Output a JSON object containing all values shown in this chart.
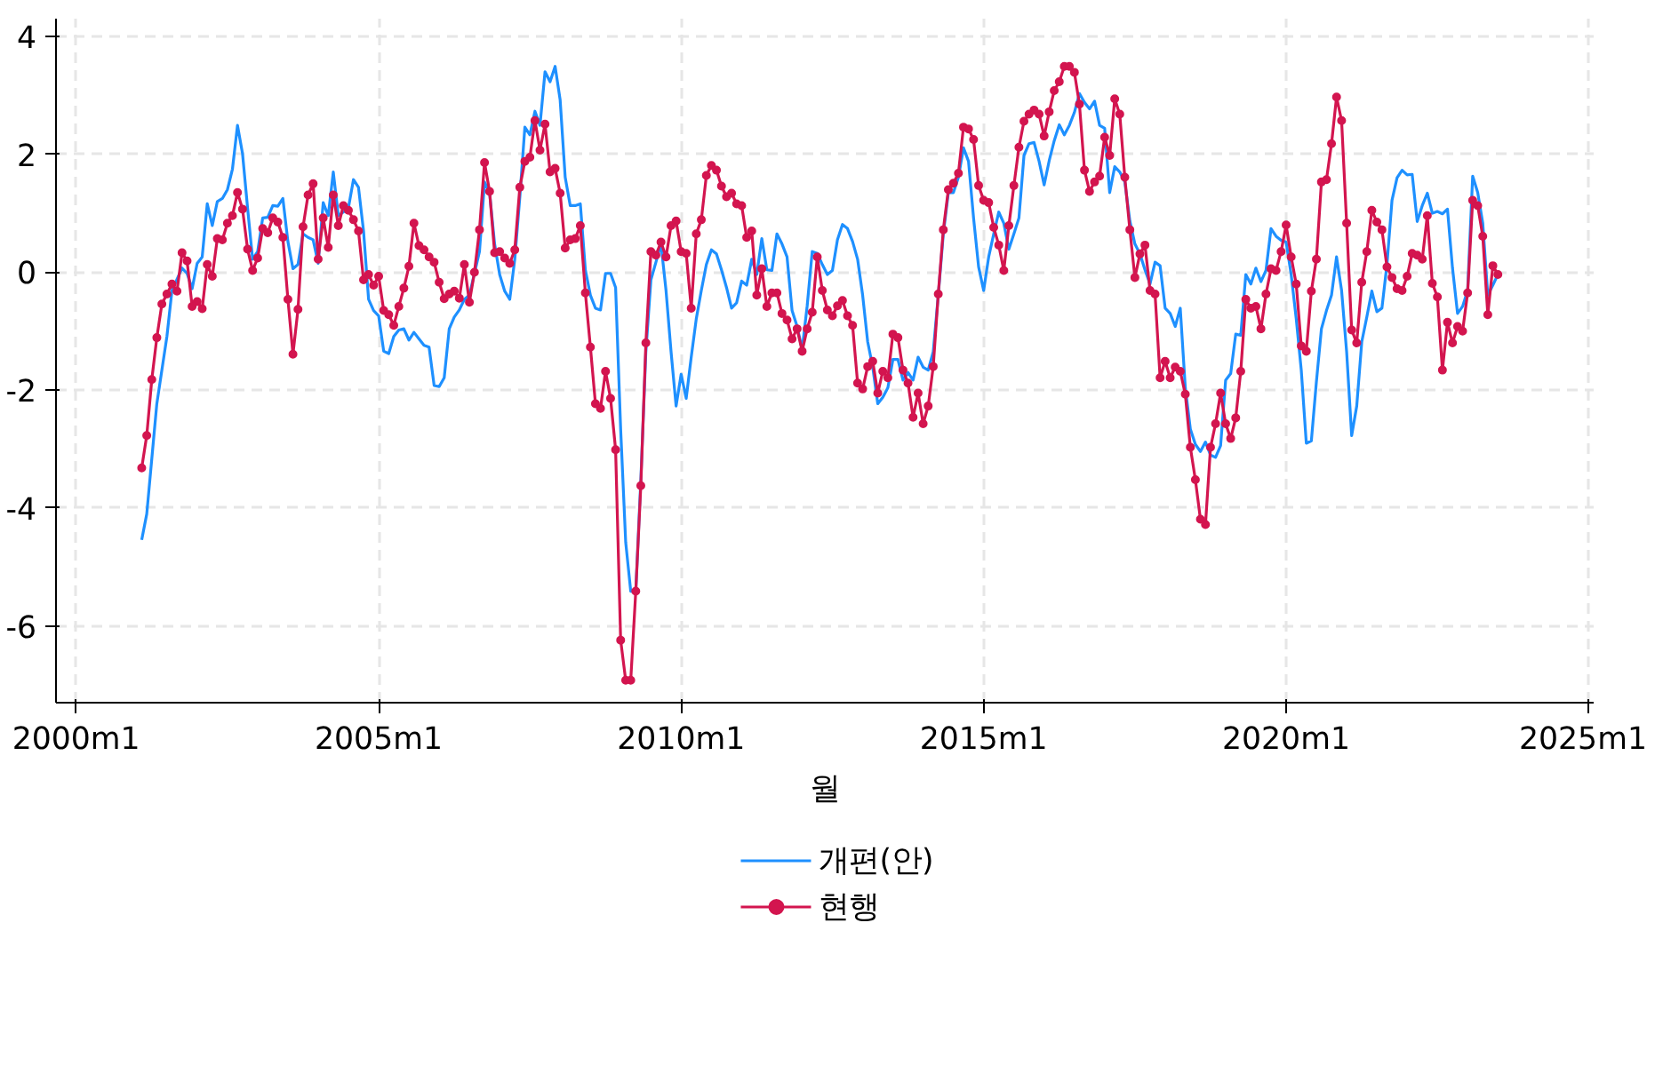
{
  "chart_data": {
    "type": "line",
    "xlabel": "월",
    "xlim": [
      "1999-09",
      "2025-02"
    ],
    "ylim": [
      -7.3,
      4.3
    ],
    "xticks": [
      {
        "value": "2000-01",
        "label": "2000m1"
      },
      {
        "value": "2005-01",
        "label": "2005m1"
      },
      {
        "value": "2010-01",
        "label": "2010m1"
      },
      {
        "value": "2015-01",
        "label": "2015m1"
      },
      {
        "value": "2020-01",
        "label": "2020m1"
      },
      {
        "value": "2025-01",
        "label": "2025m1"
      }
    ],
    "yticks": [
      -6,
      -4,
      -2,
      0,
      2,
      4
    ],
    "grid": true,
    "legend": "bottom",
    "line_style": "solid",
    "series": [
      {
        "name": "개편(안)",
        "color": "#1e90ff",
        "marker": "none",
        "x": [
          "2001-02",
          "2001-03",
          "2001-05",
          "2001-07",
          "2001-08",
          "2001-10",
          "2001-11",
          "2001-12",
          "2002-01",
          "2002-02",
          "2002-03",
          "2002-04",
          "2002-05",
          "2002-06",
          "2002-07",
          "2002-08",
          "2002-09",
          "2002-10",
          "2002-11",
          "2002-12",
          "2003-01",
          "2003-02",
          "2003-03",
          "2003-04",
          "2003-05",
          "2003-06",
          "2003-07",
          "2003-08",
          "2003-09",
          "2003-10",
          "2003-11",
          "2003-12",
          "2004-01",
          "2004-02",
          "2004-03",
          "2004-04",
          "2004-05",
          "2004-06",
          "2004-07",
          "2004-08",
          "2004-09",
          "2004-10",
          "2004-11",
          "2004-12",
          "2005-01",
          "2005-02",
          "2005-03",
          "2005-04",
          "2005-05",
          "2005-06",
          "2005-07",
          "2005-08",
          "2005-09",
          "2005-10",
          "2005-11",
          "2005-12",
          "2006-01",
          "2006-02",
          "2006-03",
          "2006-04",
          "2006-05",
          "2006-06",
          "2006-07",
          "2006-09",
          "2006-10",
          "2006-11",
          "2006-12",
          "2007-01",
          "2007-02",
          "2007-03",
          "2007-04",
          "2007-05",
          "2007-06",
          "2007-07",
          "2007-08",
          "2007-09",
          "2007-10",
          "2007-11",
          "2007-12",
          "2008-01",
          "2008-02",
          "2008-03",
          "2008-04",
          "2008-05",
          "2008-06",
          "2008-07",
          "2008-08",
          "2008-09",
          "2008-10",
          "2008-11",
          "2008-12",
          "2009-01",
          "2009-02",
          "2009-03",
          "2009-04",
          "2009-05",
          "2009-06",
          "2009-07",
          "2009-08",
          "2009-09",
          "2009-10",
          "2009-11",
          "2009-12",
          "2010-01",
          "2010-02",
          "2010-03",
          "2010-04",
          "2010-05",
          "2010-06",
          "2010-07",
          "2010-08",
          "2010-09",
          "2010-10",
          "2010-11",
          "2010-12",
          "2011-01",
          "2011-02",
          "2011-03",
          "2011-04",
          "2011-05",
          "2011-06",
          "2011-07",
          "2011-08",
          "2011-09",
          "2011-10",
          "2011-11",
          "2011-12",
          "2012-01",
          "2012-02",
          "2012-03",
          "2012-04",
          "2012-05",
          "2012-06",
          "2012-07",
          "2012-08",
          "2012-09",
          "2012-10",
          "2012-11",
          "2012-12",
          "2013-01",
          "2013-02",
          "2013-03",
          "2013-04",
          "2013-05",
          "2013-06",
          "2013-07",
          "2013-08",
          "2013-09",
          "2013-10",
          "2013-11",
          "2013-12",
          "2014-01",
          "2014-02",
          "2014-03",
          "2014-04",
          "2014-05",
          "2014-06",
          "2014-07",
          "2014-08",
          "2014-09",
          "2014-10",
          "2014-11",
          "2014-12",
          "2015-01",
          "2015-02",
          "2015-03",
          "2015-04",
          "2015-05",
          "2015-06",
          "2015-07",
          "2015-08",
          "2015-09",
          "2015-10",
          "2015-11",
          "2015-12",
          "2016-01",
          "2016-02",
          "2016-03",
          "2016-04",
          "2016-05",
          "2016-06",
          "2016-07",
          "2016-08",
          "2016-09",
          "2016-10",
          "2016-11",
          "2016-12",
          "2017-01",
          "2017-02",
          "2017-03",
          "2017-04",
          "2017-05",
          "2017-06",
          "2017-07",
          "2017-08",
          "2017-09",
          "2017-10",
          "2017-11",
          "2017-12",
          "2018-01",
          "2018-02",
          "2018-03",
          "2018-04",
          "2018-05",
          "2018-06",
          "2018-07",
          "2018-08",
          "2018-09",
          "2018-10",
          "2018-11",
          "2018-12",
          "2019-01",
          "2019-02",
          "2019-03",
          "2019-04",
          "2019-05",
          "2019-06",
          "2019-07",
          "2019-08",
          "2019-09",
          "2019-10",
          "2019-11",
          "2019-12",
          "2020-01",
          "2020-02",
          "2020-03",
          "2020-04",
          "2020-05",
          "2020-06",
          "2020-07",
          "2020-08",
          "2020-09",
          "2020-10",
          "2020-11",
          "2020-12",
          "2021-01",
          "2021-02",
          "2021-03",
          "2021-04",
          "2021-05",
          "2021-06",
          "2021-07",
          "2021-08",
          "2021-09",
          "2021-10",
          "2021-11",
          "2021-12",
          "2022-01",
          "2022-02",
          "2022-03",
          "2022-04",
          "2022-05",
          "2022-06",
          "2022-07",
          "2022-08",
          "2022-09",
          "2022-10",
          "2022-11",
          "2022-12",
          "2023-01",
          "2023-02",
          "2023-03",
          "2023-04",
          "2023-05",
          "2023-06",
          "2023-07"
        ],
        "values": [
          -4.54,
          -4.1,
          -2.23,
          -1.09,
          -0.31,
          0.07,
          -0.02,
          -0.28,
          0.15,
          0.26,
          1.16,
          0.79,
          1.2,
          1.25,
          1.4,
          1.75,
          2.49,
          2.01,
          1.09,
          0.22,
          0.35,
          0.92,
          0.93,
          1.13,
          1.12,
          1.25,
          0.52,
          0.06,
          0.13,
          0.65,
          0.59,
          0.55,
          0.15,
          1.18,
          0.96,
          1.7,
          0.96,
          1.02,
          1.09,
          1.57,
          1.44,
          0.7,
          -0.46,
          -0.65,
          -0.74,
          -1.34,
          -1.38,
          -1.09,
          -0.98,
          -0.96,
          -1.15,
          -1.02,
          -1.13,
          -1.24,
          -1.27,
          -1.92,
          -1.94,
          -1.79,
          -0.96,
          -0.76,
          -0.64,
          -0.46,
          -0.39,
          0.35,
          1.53,
          1.35,
          0.48,
          -0.04,
          -0.32,
          -0.46,
          0.22,
          1.27,
          2.46,
          2.33,
          2.73,
          2.49,
          3.4,
          3.23,
          3.49,
          2.92,
          1.61,
          1.13,
          1.13,
          1.16,
          0.04,
          -0.39,
          -0.61,
          -0.64,
          -0.02,
          -0.02,
          -0.26,
          -2.66,
          -4.58,
          -5.41,
          -5.41,
          -3.53,
          -1.35,
          -0.13,
          0.17,
          0.48,
          -0.31,
          -1.35,
          -2.27,
          -1.73,
          -2.14,
          -1.44,
          -0.79,
          -0.31,
          0.13,
          0.38,
          0.31,
          0.04,
          -0.26,
          -0.61,
          -0.52,
          -0.15,
          -0.22,
          0.22,
          -0.04,
          0.57,
          0.04,
          0.03,
          0.65,
          0.48,
          0.26,
          -0.65,
          -0.92,
          -1.31,
          -0.57,
          0.35,
          0.32,
          0.13,
          -0.04,
          0.03,
          0.55,
          0.81,
          0.74,
          0.52,
          0.22,
          -0.39,
          -1.18,
          -1.61,
          -2.23,
          -2.12,
          -1.96,
          -1.48,
          -1.48,
          -1.83,
          -1.7,
          -1.83,
          -1.44,
          -1.61,
          -1.66,
          -1.35,
          -0.39,
          0.65,
          1.35,
          1.35,
          1.61,
          2.11,
          1.88,
          0.92,
          0.09,
          -0.31,
          0.26,
          0.65,
          1.02,
          0.83,
          0.39,
          0.65,
          0.92,
          1.98,
          2.18,
          2.2,
          1.88,
          1.48,
          1.89,
          2.23,
          2.5,
          2.33,
          2.49,
          2.71,
          3.03,
          2.88,
          2.77,
          2.9,
          2.49,
          2.44,
          1.35,
          1.79,
          1.7,
          1.53,
          0.87,
          0.48,
          0.31,
          0.04,
          -0.2,
          0.17,
          0.11,
          -0.61,
          -0.7,
          -0.92,
          -0.61,
          -1.96,
          -2.66,
          -2.92,
          -3.04,
          -2.88,
          -3.1,
          -3.14,
          -2.94,
          -1.83,
          -1.72,
          -1.05,
          -1.07,
          -0.04,
          -0.2,
          0.07,
          -0.16,
          0.03,
          0.74,
          0.61,
          0.54,
          0.51,
          -0.04,
          -0.79,
          -1.66,
          -2.9,
          -2.86,
          -1.86,
          -0.96,
          -0.65,
          -0.39,
          0.26,
          -0.31,
          -1.35,
          -2.77,
          -2.27,
          -1.18,
          -0.76,
          -0.32,
          -0.67,
          -0.61,
          0.13,
          1.22,
          1.6,
          1.73,
          1.65,
          1.66,
          0.86,
          1.13,
          1.34,
          1.0,
          1.03,
          0.99,
          1.07,
          0.07,
          -0.7,
          -0.58,
          -0.31,
          1.63,
          1.35,
          0.83,
          -0.39,
          -0.22,
          -0.04
        ]
      },
      {
        "name": "현행",
        "color": "#d3154f",
        "marker": "circle",
        "x": [
          "2001-02",
          "2001-03",
          "2001-04",
          "2001-05",
          "2001-06",
          "2001-07",
          "2001-08",
          "2001-09",
          "2001-10",
          "2001-11",
          "2001-12",
          "2002-01",
          "2002-02",
          "2002-03",
          "2002-04",
          "2002-05",
          "2002-06",
          "2002-07",
          "2002-08",
          "2002-09",
          "2002-10",
          "2002-11",
          "2002-12",
          "2003-01",
          "2003-02",
          "2003-03",
          "2003-04",
          "2003-05",
          "2003-06",
          "2003-07",
          "2003-08",
          "2003-09",
          "2003-10",
          "2003-11",
          "2003-12",
          "2004-01",
          "2004-02",
          "2004-03",
          "2004-04",
          "2004-05",
          "2004-06",
          "2004-07",
          "2004-08",
          "2004-09",
          "2004-10",
          "2004-11",
          "2004-12",
          "2005-01",
          "2005-02",
          "2005-03",
          "2005-04",
          "2005-05",
          "2005-06",
          "2005-07",
          "2005-08",
          "2005-09",
          "2005-10",
          "2005-11",
          "2005-12",
          "2006-01",
          "2006-02",
          "2006-03",
          "2006-04",
          "2006-05",
          "2006-06",
          "2006-07",
          "2006-08",
          "2006-09",
          "2006-10",
          "2006-11",
          "2006-12",
          "2007-01",
          "2007-02",
          "2007-03",
          "2007-04",
          "2007-05",
          "2007-06",
          "2007-07",
          "2007-08",
          "2007-09",
          "2007-10",
          "2007-11",
          "2007-12",
          "2008-01",
          "2008-02",
          "2008-03",
          "2008-04",
          "2008-05",
          "2008-06",
          "2008-07",
          "2008-08",
          "2008-09",
          "2008-10",
          "2008-11",
          "2008-12",
          "2009-01",
          "2009-02",
          "2009-03",
          "2009-04",
          "2009-05",
          "2009-06",
          "2009-07",
          "2009-08",
          "2009-09",
          "2009-10",
          "2009-11",
          "2009-12",
          "2010-01",
          "2010-02",
          "2010-03",
          "2010-04",
          "2010-05",
          "2010-06",
          "2010-07",
          "2010-08",
          "2010-09",
          "2010-10",
          "2010-11",
          "2010-12",
          "2011-01",
          "2011-02",
          "2011-03",
          "2011-04",
          "2011-05",
          "2011-06",
          "2011-07",
          "2011-08",
          "2011-09",
          "2011-10",
          "2011-11",
          "2011-12",
          "2012-01",
          "2012-02",
          "2012-03",
          "2012-04",
          "2012-05",
          "2012-06",
          "2012-07",
          "2012-08",
          "2012-09",
          "2012-10",
          "2012-11",
          "2012-12",
          "2013-01",
          "2013-02",
          "2013-03",
          "2013-04",
          "2013-05",
          "2013-06",
          "2013-07",
          "2013-08",
          "2013-09",
          "2013-10",
          "2013-11",
          "2013-12",
          "2014-01",
          "2014-02",
          "2014-03",
          "2014-04",
          "2014-05",
          "2014-06",
          "2014-07",
          "2014-08",
          "2014-09",
          "2014-10",
          "2014-11",
          "2014-12",
          "2015-01",
          "2015-02",
          "2015-03",
          "2015-04",
          "2015-05",
          "2015-06",
          "2015-07",
          "2015-08",
          "2015-09",
          "2015-10",
          "2015-11",
          "2015-12",
          "2016-01",
          "2016-02",
          "2016-03",
          "2016-04",
          "2016-05",
          "2016-06",
          "2016-07",
          "2016-08",
          "2016-09",
          "2016-10",
          "2016-11",
          "2016-12",
          "2017-01",
          "2017-02",
          "2017-03",
          "2017-04",
          "2017-05",
          "2017-06",
          "2017-07",
          "2017-08",
          "2017-09",
          "2017-10",
          "2017-11",
          "2017-12",
          "2018-01",
          "2018-02",
          "2018-03",
          "2018-04",
          "2018-05",
          "2018-06",
          "2018-07",
          "2018-08",
          "2018-09",
          "2018-10",
          "2018-11",
          "2018-12",
          "2019-01",
          "2019-02",
          "2019-03",
          "2019-04",
          "2019-05",
          "2019-06",
          "2019-07",
          "2019-08",
          "2019-09",
          "2019-10",
          "2019-11",
          "2019-12",
          "2020-01",
          "2020-02",
          "2020-03",
          "2020-04",
          "2020-05",
          "2020-06",
          "2020-07",
          "2020-08",
          "2020-09",
          "2020-10",
          "2020-11",
          "2020-12",
          "2021-01",
          "2021-02",
          "2021-03",
          "2021-04",
          "2021-05",
          "2021-06",
          "2021-07",
          "2021-08",
          "2021-09",
          "2021-10",
          "2021-11",
          "2021-12",
          "2022-01",
          "2022-02",
          "2022-03",
          "2022-04",
          "2022-05",
          "2022-06",
          "2022-07",
          "2022-08",
          "2022-09",
          "2022-10",
          "2022-11",
          "2022-12",
          "2023-01",
          "2023-02",
          "2023-03",
          "2023-04",
          "2023-05",
          "2023-06",
          "2023-07"
        ],
        "values": [
          -3.32,
          -2.77,
          -1.82,
          -1.11,
          -0.54,
          -0.37,
          -0.2,
          -0.32,
          0.33,
          0.19,
          -0.58,
          -0.5,
          -0.62,
          0.13,
          -0.07,
          0.57,
          0.55,
          0.83,
          0.96,
          1.35,
          1.07,
          0.39,
          0.03,
          0.24,
          0.74,
          0.67,
          0.92,
          0.85,
          0.59,
          -0.46,
          -1.39,
          -0.63,
          0.77,
          1.31,
          1.5,
          0.22,
          0.92,
          0.42,
          1.31,
          0.79,
          1.13,
          1.05,
          0.89,
          0.7,
          -0.13,
          -0.04,
          -0.22,
          -0.07,
          -0.65,
          -0.72,
          -0.9,
          -0.58,
          -0.27,
          0.1,
          0.83,
          0.45,
          0.38,
          0.26,
          0.17,
          -0.17,
          -0.45,
          -0.37,
          -0.32,
          -0.44,
          0.13,
          -0.51,
          0.0,
          0.72,
          1.86,
          1.37,
          0.33,
          0.35,
          0.24,
          0.15,
          0.38,
          1.44,
          1.88,
          1.95,
          2.57,
          2.07,
          2.51,
          1.7,
          1.76,
          1.34,
          0.41,
          0.55,
          0.57,
          0.79,
          -0.35,
          -1.27,
          -2.23,
          -2.31,
          -1.68,
          -2.14,
          -3.01,
          -6.24,
          -6.92,
          -6.92,
          -5.41,
          -3.62,
          -1.2,
          0.35,
          0.29,
          0.51,
          0.26,
          0.79,
          0.87,
          0.35,
          0.32,
          -0.61,
          0.65,
          0.89,
          1.64,
          1.81,
          1.73,
          1.46,
          1.28,
          1.34,
          1.16,
          1.13,
          0.59,
          0.7,
          -0.39,
          0.06,
          -0.58,
          -0.35,
          -0.35,
          -0.7,
          -0.81,
          -1.13,
          -0.96,
          -1.34,
          -0.96,
          -0.68,
          0.26,
          -0.31,
          -0.64,
          -0.74,
          -0.57,
          -0.48,
          -0.74,
          -0.9,
          -1.88,
          -1.98,
          -1.6,
          -1.51,
          -2.05,
          -1.68,
          -1.79,
          -1.05,
          -1.11,
          -1.66,
          -1.88,
          -2.46,
          -2.05,
          -2.57,
          -2.27,
          -1.6,
          -0.37,
          0.72,
          1.4,
          1.51,
          1.68,
          2.46,
          2.43,
          2.25,
          1.47,
          1.22,
          1.18,
          0.76,
          0.46,
          0.03,
          0.79,
          1.47,
          2.12,
          2.56,
          2.68,
          2.75,
          2.68,
          2.31,
          2.72,
          3.08,
          3.23,
          3.49,
          3.49,
          3.39,
          2.85,
          1.73,
          1.37,
          1.53,
          1.63,
          2.29,
          1.98,
          2.94,
          2.68,
          1.61,
          0.72,
          -0.09,
          0.31,
          0.46,
          -0.31,
          -0.37,
          -1.79,
          -1.51,
          -1.79,
          -1.61,
          -1.68,
          -2.07,
          -2.97,
          -3.52,
          -4.19,
          -4.28,
          -2.97,
          -2.57,
          -2.05,
          -2.57,
          -2.82,
          -2.47,
          -1.68,
          -0.46,
          -0.61,
          -0.58,
          -0.96,
          -0.37,
          0.06,
          0.03,
          0.35,
          0.8,
          0.26,
          -0.2,
          -1.25,
          -1.34,
          -0.32,
          0.22,
          1.53,
          1.57,
          2.18,
          2.97,
          2.57,
          0.83,
          -0.98,
          -1.2,
          -0.17,
          0.35,
          1.05,
          0.85,
          0.72,
          0.09,
          -0.09,
          -0.28,
          -0.31,
          -0.07,
          0.32,
          0.29,
          0.22,
          0.96,
          -0.19,
          -0.42,
          -1.66,
          -0.85,
          -1.2,
          -0.92,
          -1.0,
          -0.35,
          1.22,
          1.13,
          0.61,
          -0.72,
          0.11,
          -0.04
        ]
      }
    ]
  }
}
